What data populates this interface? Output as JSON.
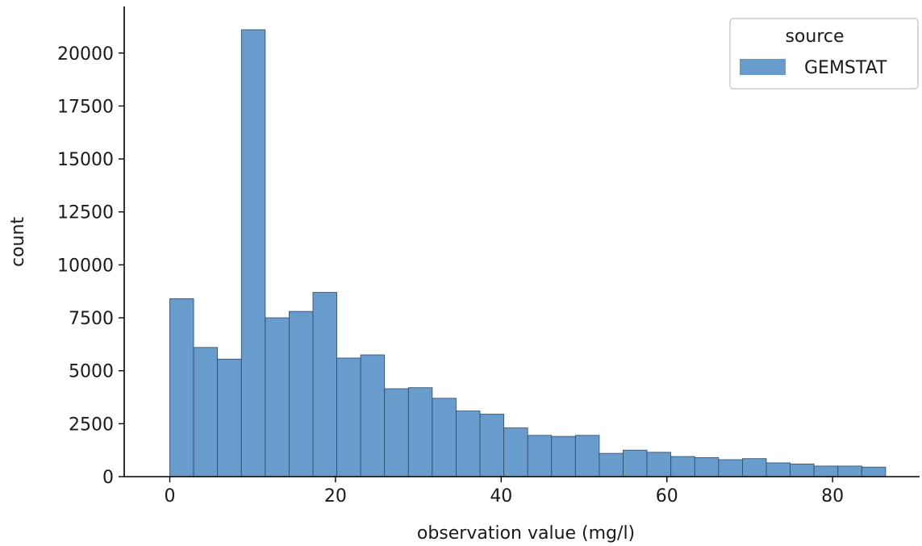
{
  "chart_data": {
    "type": "bar",
    "histogram": true,
    "xlabel": "observation value (mg/l)",
    "ylabel": "count",
    "xlim": [
      -5.5,
      90.5
    ],
    "ylim": [
      0,
      22200
    ],
    "x_ticks": [
      0,
      20,
      40,
      60,
      80
    ],
    "y_ticks": [
      0,
      2500,
      5000,
      7500,
      10000,
      12500,
      15000,
      17500,
      20000
    ],
    "bin_edges": [
      0,
      2.88,
      5.76,
      8.64,
      11.52,
      14.4,
      17.28,
      20.16,
      23.04,
      25.92,
      28.8,
      31.68,
      34.56,
      37.44,
      40.32,
      43.2,
      46.08,
      48.96,
      51.84,
      54.72,
      57.6,
      60.48,
      63.36,
      66.24,
      69.12,
      72.0,
      74.88,
      77.76,
      80.64,
      83.52,
      86.4
    ],
    "series": [
      {
        "name": "GEMSTAT",
        "color": "#4c8bc4",
        "values": [
          8400,
          6100,
          5550,
          21100,
          7500,
          7800,
          8700,
          5600,
          5750,
          4150,
          4200,
          3700,
          3100,
          2950,
          2300,
          1950,
          1900,
          1950,
          1100,
          1250,
          1150,
          950,
          900,
          800,
          850,
          650,
          600,
          500,
          500,
          450
        ]
      }
    ],
    "legend": {
      "title": "source",
      "position": "top-right"
    },
    "grid": false
  }
}
